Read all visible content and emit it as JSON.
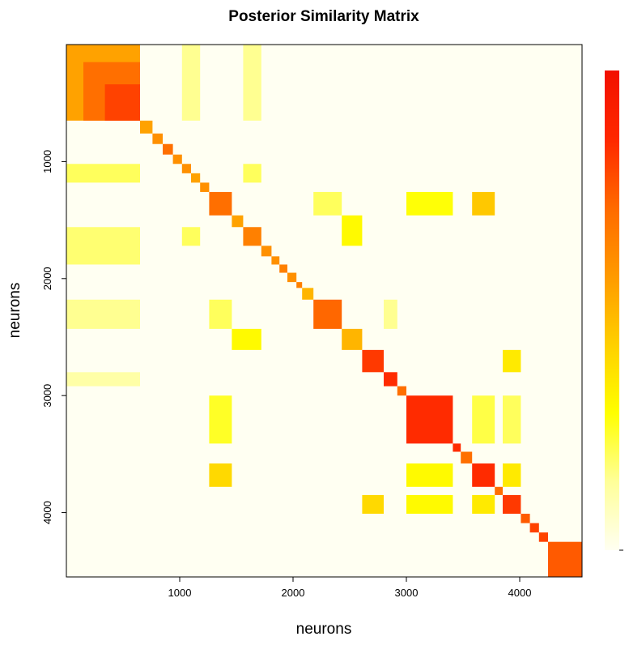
{
  "chart_data": {
    "type": "heatmap",
    "title": "Posterior Similarity Matrix",
    "xlabel": "neurons",
    "ylabel": "neurons",
    "n": 4550,
    "xlim": [
      0,
      4550
    ],
    "ylim": [
      0,
      4550
    ],
    "x_ticks": [
      1000,
      2000,
      3000,
      4000
    ],
    "y_ticks": [
      1000,
      2000,
      3000,
      4000
    ],
    "value_range": [
      0,
      1
    ],
    "colorscale": [
      "#fffff2",
      "#ffff99",
      "#ffff00",
      "#ffd000",
      "#ff9a00",
      "#ff6a00",
      "#ff2800",
      "#f21000"
    ],
    "legend": {
      "placement": "right",
      "tick_labels": []
    },
    "diagonal_blocks": [
      {
        "start": 0,
        "end": 650,
        "value": 0.55
      },
      {
        "start": 650,
        "end": 760,
        "value": 0.55
      },
      {
        "start": 760,
        "end": 850,
        "value": 0.6
      },
      {
        "start": 850,
        "end": 940,
        "value": 0.7
      },
      {
        "start": 940,
        "end": 1020,
        "value": 0.6
      },
      {
        "start": 1020,
        "end": 1100,
        "value": 0.6
      },
      {
        "start": 1100,
        "end": 1180,
        "value": 0.55
      },
      {
        "start": 1180,
        "end": 1260,
        "value": 0.6
      },
      {
        "start": 1260,
        "end": 1460,
        "value": 0.7
      },
      {
        "start": 1460,
        "end": 1560,
        "value": 0.55
      },
      {
        "start": 1560,
        "end": 1720,
        "value": 0.65
      },
      {
        "start": 1720,
        "end": 1810,
        "value": 0.6
      },
      {
        "start": 1810,
        "end": 1880,
        "value": 0.6
      },
      {
        "start": 1880,
        "end": 1950,
        "value": 0.65
      },
      {
        "start": 1950,
        "end": 2030,
        "value": 0.6
      },
      {
        "start": 2030,
        "end": 2080,
        "value": 0.65
      },
      {
        "start": 2080,
        "end": 2180,
        "value": 0.5
      },
      {
        "start": 2180,
        "end": 2430,
        "value": 0.72
      },
      {
        "start": 2430,
        "end": 2610,
        "value": 0.5
      },
      {
        "start": 2610,
        "end": 2800,
        "value": 0.82
      },
      {
        "start": 2800,
        "end": 2920,
        "value": 0.85
      },
      {
        "start": 2920,
        "end": 3000,
        "value": 0.7
      },
      {
        "start": 3000,
        "end": 3410,
        "value": 0.85
      },
      {
        "start": 3410,
        "end": 3480,
        "value": 0.85
      },
      {
        "start": 3480,
        "end": 3580,
        "value": 0.7
      },
      {
        "start": 3580,
        "end": 3780,
        "value": 0.85
      },
      {
        "start": 3780,
        "end": 3850,
        "value": 0.7
      },
      {
        "start": 3850,
        "end": 4010,
        "value": 0.82
      },
      {
        "start": 4010,
        "end": 4090,
        "value": 0.75
      },
      {
        "start": 4090,
        "end": 4170,
        "value": 0.8
      },
      {
        "start": 4170,
        "end": 4250,
        "value": 0.8
      },
      {
        "start": 4250,
        "end": 4550,
        "value": 0.75
      }
    ],
    "sub_blocks": [
      {
        "start": 150,
        "end": 650,
        "value": 0.7
      },
      {
        "start": 340,
        "end": 650,
        "value": 0.8
      }
    ],
    "off_diagonal_blocks": [
      {
        "rows": [
          0,
          650
        ],
        "cols": [
          1560,
          1720
        ],
        "value": 0.15
      },
      {
        "rows": [
          1020,
          1180
        ],
        "cols": [
          0,
          650
        ],
        "value": 0.2
      },
      {
        "rows": [
          1020,
          1180
        ],
        "cols": [
          1560,
          1720
        ],
        "value": 0.2
      },
      {
        "rows": [
          1560,
          1880
        ],
        "cols": [
          0,
          650
        ],
        "value": 0.18
      },
      {
        "rows": [
          1560,
          1720
        ],
        "cols": [
          1020,
          1180
        ],
        "value": 0.2
      },
      {
        "rows": [
          1460,
          1720
        ],
        "cols": [
          2430,
          2610
        ],
        "value": 0.3
      },
      {
        "rows": [
          2430,
          2610
        ],
        "cols": [
          1460,
          1720
        ],
        "value": 0.3
      },
      {
        "rows": [
          2180,
          2430
        ],
        "cols": [
          0,
          650
        ],
        "value": 0.15
      },
      {
        "rows": [
          2180,
          2430
        ],
        "cols": [
          1260,
          1460
        ],
        "value": 0.2
      },
      {
        "rows": [
          1260,
          1460
        ],
        "cols": [
          2180,
          2430
        ],
        "value": 0.2
      },
      {
        "rows": [
          1260,
          1460
        ],
        "cols": [
          3000,
          3410
        ],
        "value": 0.28
      },
      {
        "rows": [
          3000,
          3410
        ],
        "cols": [
          1260,
          1460
        ],
        "value": 0.25
      },
      {
        "rows": [
          1260,
          1460
        ],
        "cols": [
          3580,
          3780
        ],
        "value": 0.45
      },
      {
        "rows": [
          3580,
          3780
        ],
        "cols": [
          1260,
          1460
        ],
        "value": 0.4
      },
      {
        "rows": [
          2610,
          2800
        ],
        "cols": [
          3850,
          4010
        ],
        "value": 0.35
      },
      {
        "rows": [
          3850,
          4010
        ],
        "cols": [
          2610,
          2800
        ],
        "value": 0.4
      },
      {
        "rows": [
          3000,
          3410
        ],
        "cols": [
          3580,
          3780
        ],
        "value": 0.22
      },
      {
        "rows": [
          3580,
          3780
        ],
        "cols": [
          3000,
          3410
        ],
        "value": 0.3
      },
      {
        "rows": [
          3000,
          3410
        ],
        "cols": [
          3850,
          4010
        ],
        "value": 0.2
      },
      {
        "rows": [
          3850,
          4010
        ],
        "cols": [
          3000,
          3410
        ],
        "value": 0.3
      },
      {
        "rows": [
          3580,
          3780
        ],
        "cols": [
          3850,
          4010
        ],
        "value": 0.35
      },
      {
        "rows": [
          3850,
          4010
        ],
        "cols": [
          3580,
          3780
        ],
        "value": 0.35
      },
      {
        "rows": [
          0,
          650
        ],
        "cols": [
          1020,
          1180
        ],
        "value": 0.15
      },
      {
        "rows": [
          2800,
          2920
        ],
        "cols": [
          0,
          650
        ],
        "value": 0.12
      },
      {
        "rows": [
          2180,
          2430
        ],
        "cols": [
          2800,
          2920
        ],
        "value": 0.15
      }
    ]
  }
}
